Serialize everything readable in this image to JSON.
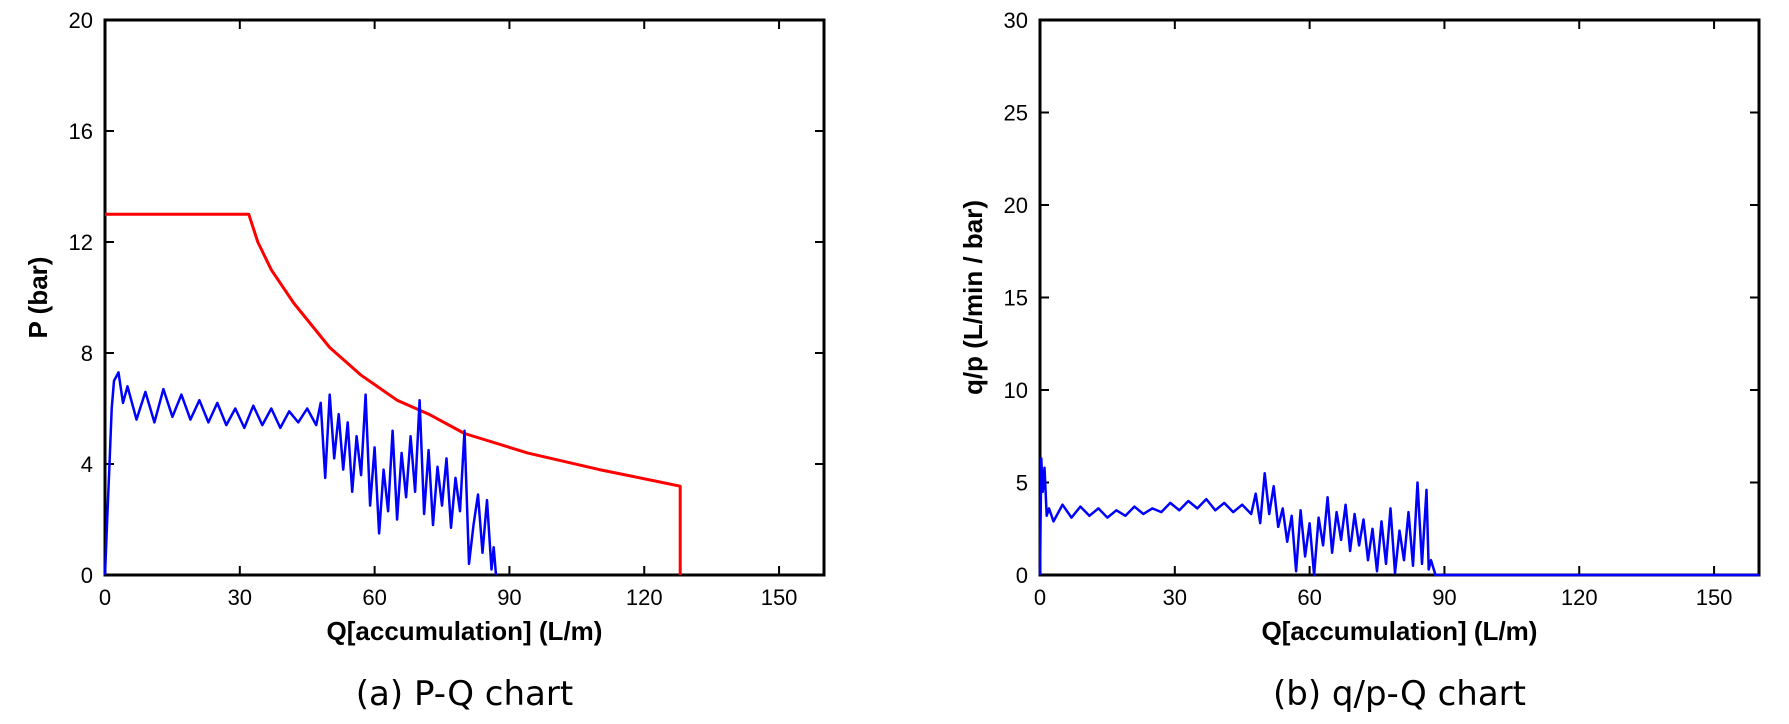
{
  "colors": {
    "envelope": "#ff0000",
    "measured": "#0000ff",
    "axis": "#000000"
  },
  "chart_data": [
    {
      "type": "line",
      "caption": "(a) P-Q chart",
      "xlabel": "Q[accumulation] (L/m)",
      "ylabel": "P (bar)",
      "xlim": [
        0,
        160
      ],
      "ylim": [
        0,
        20
      ],
      "xticks": [
        0,
        30,
        60,
        90,
        120,
        150
      ],
      "yticks": [
        0,
        4,
        8,
        12,
        16,
        20
      ],
      "grid": false,
      "series": [
        {
          "color": "envelope",
          "x": [
            0,
            32,
            34,
            37,
            42,
            50,
            57,
            65,
            72,
            80,
            94,
            110,
            122,
            128,
            128
          ],
          "y": [
            13,
            13,
            12,
            11,
            9.8,
            8.2,
            7.2,
            6.3,
            5.8,
            5.1,
            4.4,
            3.8,
            3.4,
            3.2,
            0
          ]
        },
        {
          "color": "measured",
          "x": [
            0,
            0.5,
            1,
            1.5,
            2,
            3,
            4,
            5,
            7,
            9,
            11,
            13,
            15,
            17,
            19,
            21,
            23,
            25,
            27,
            29,
            31,
            33,
            35,
            37,
            39,
            41,
            43,
            45,
            47,
            48,
            49,
            50,
            51,
            52,
            53,
            54,
            55,
            56,
            57,
            58,
            59,
            60,
            61,
            62,
            63,
            64,
            65,
            66,
            67,
            68,
            69,
            70,
            71,
            72,
            73,
            74,
            75,
            76,
            77,
            78,
            79,
            80,
            81,
            82,
            83,
            84,
            85,
            86,
            86.5,
            87
          ],
          "y": [
            0,
            2,
            4,
            6,
            7,
            7.3,
            6.2,
            6.8,
            5.6,
            6.6,
            5.5,
            6.7,
            5.7,
            6.5,
            5.6,
            6.3,
            5.5,
            6.2,
            5.4,
            6.0,
            5.3,
            6.1,
            5.4,
            6.0,
            5.3,
            5.9,
            5.5,
            6.0,
            5.4,
            6.2,
            3.5,
            6.5,
            4.2,
            5.8,
            3.8,
            5.5,
            3.0,
            5.0,
            3.6,
            6.5,
            2.5,
            4.6,
            1.5,
            3.8,
            2.3,
            5.2,
            2.0,
            4.4,
            2.8,
            5.0,
            3.0,
            6.3,
            2.2,
            4.5,
            1.8,
            3.9,
            2.5,
            4.2,
            1.7,
            3.5,
            2.3,
            5.2,
            0.4,
            1.8,
            2.9,
            0.8,
            2.7,
            0.2,
            1.0,
            0
          ]
        }
      ]
    },
    {
      "type": "line",
      "caption": "(b) q/p-Q chart",
      "xlabel": "Q[accumulation] (L/m)",
      "ylabel": "q/p (L/min / bar)",
      "xlim": [
        0,
        160
      ],
      "ylim": [
        0,
        30
      ],
      "xticks": [
        0,
        30,
        60,
        90,
        120,
        150
      ],
      "yticks": [
        0,
        5,
        10,
        15,
        20,
        25,
        30
      ],
      "grid": false,
      "series": [
        {
          "color": "measured",
          "x": [
            0,
            0.3,
            0.6,
            1,
            1.5,
            2,
            3,
            5,
            7,
            9,
            11,
            13,
            15,
            17,
            19,
            21,
            23,
            25,
            27,
            29,
            31,
            33,
            35,
            37,
            39,
            41,
            43,
            45,
            47,
            48,
            49,
            50,
            51,
            52,
            53,
            54,
            55,
            56,
            57,
            58,
            59,
            60,
            61,
            62,
            63,
            64,
            65,
            66,
            67,
            68,
            69,
            70,
            71,
            72,
            73,
            74,
            75,
            76,
            77,
            78,
            79,
            80,
            81,
            82,
            83,
            84,
            85,
            86,
            86.5,
            87,
            88,
            160
          ],
          "y": [
            0,
            6.3,
            4.5,
            5.8,
            3.2,
            3.6,
            2.9,
            3.8,
            3.1,
            3.7,
            3.2,
            3.6,
            3.1,
            3.5,
            3.2,
            3.7,
            3.3,
            3.6,
            3.4,
            3.9,
            3.5,
            4.0,
            3.6,
            4.1,
            3.5,
            3.9,
            3.4,
            3.8,
            3.3,
            4.4,
            2.8,
            5.5,
            3.3,
            4.8,
            2.6,
            3.6,
            1.8,
            3.2,
            0.2,
            3.5,
            1.0,
            2.8,
            0,
            3.1,
            1.6,
            4.2,
            1.2,
            3.4,
            1.9,
            3.8,
            1.3,
            3.3,
            1.6,
            3.0,
            0.8,
            2.5,
            0.2,
            2.9,
            0.6,
            3.6,
            0.1,
            2.4,
            0.8,
            3.4,
            0.5,
            5.0,
            0.6,
            4.6,
            0.3,
            0.8,
            0,
            0
          ]
        }
      ]
    }
  ]
}
